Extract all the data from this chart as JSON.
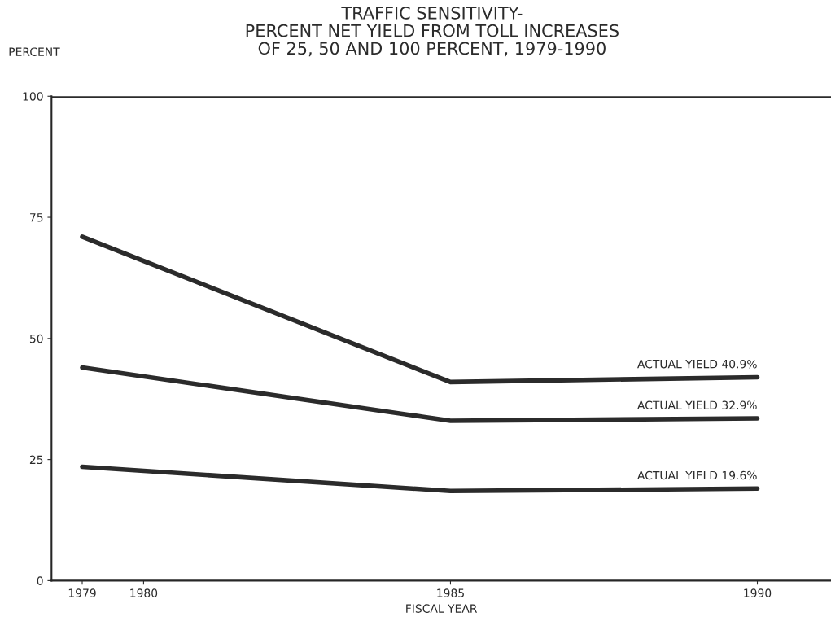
{
  "chart_data": {
    "type": "line",
    "title": "TRAFFIC SENSITIVITY-\nPERCENT NET YIELD FROM TOLL INCREASES\nOF 25, 50 AND 100 PERCENT, 1979-1990",
    "xlabel": "FISCAL YEAR",
    "ylabel": "PERCENT",
    "x": [
      1979,
      1985,
      1990
    ],
    "series": [
      {
        "color": "#2b2b2b",
        "values": [
          71,
          41,
          42
        ]
      },
      {
        "color": "#2b2b2b",
        "values": [
          44,
          33,
          33.5
        ]
      },
      {
        "color": "#2b2b2b",
        "values": [
          23.5,
          18.5,
          19
        ]
      }
    ],
    "xlim": [
      1978.5,
      1991.2
    ],
    "xticks": [
      1979,
      1980,
      1985,
      1990
    ],
    "ylim": [
      0,
      100
    ],
    "yticks": [
      0,
      25,
      50,
      75,
      100
    ],
    "ref_lines": [
      {
        "axis": "y",
        "value": 100,
        "color": "#2b2b2b"
      }
    ],
    "annotations": [
      "ACTUAL YIELD 40.9%",
      "ACTUAL YIELD 32.9%",
      "ACTUAL YIELD 19.6%"
    ],
    "grid": false,
    "legend": false,
    "marker": "none",
    "line_style": "solid"
  }
}
